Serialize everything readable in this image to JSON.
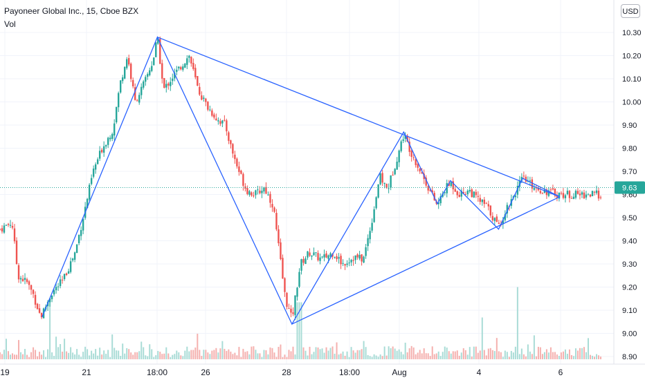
{
  "legend": {
    "symbol": "Payoneer Global Inc., 15, Cboe BZX",
    "volume_label": "Vol"
  },
  "currency_button": "USD",
  "colors": {
    "up": "#26a69a",
    "down": "#ef5350",
    "pattern_line": "#2962ff",
    "price_line": "#26a69a"
  },
  "chart_data": {
    "type": "candlestick",
    "y_ticks": [
      "10.30",
      "10.20",
      "10.10",
      "10.00",
      "9.90",
      "9.80",
      "9.70",
      "9.60",
      "9.50",
      "9.40",
      "9.30",
      "9.20",
      "9.10",
      "9.00",
      "8.90"
    ],
    "ylim": [
      8.9,
      10.35
    ],
    "x_ticks": [
      "19",
      "21",
      "18:00",
      "26",
      "28",
      "18:00",
      "Aug",
      "4",
      "6"
    ],
    "last_price": "9.63",
    "grid": true,
    "pattern_points": [
      {
        "t": 0.07,
        "price": 9.07
      },
      {
        "t": 0.262,
        "price": 10.28
      },
      {
        "t": 0.486,
        "price": 9.04
      },
      {
        "t": 0.672,
        "price": 9.87
      },
      {
        "t": 0.728,
        "price": 9.56
      },
      {
        "t": 0.75,
        "price": 9.66
      },
      {
        "t": 0.83,
        "price": 9.45
      },
      {
        "t": 0.87,
        "price": 9.67
      },
      {
        "t": 0.932,
        "price": 9.59
      }
    ],
    "triangle_lines": [
      [
        {
          "t": 0.262,
          "price": 10.28
        },
        {
          "t": 0.932,
          "price": 9.59
        }
      ],
      [
        {
          "t": 0.486,
          "price": 9.04
        },
        {
          "t": 0.932,
          "price": 9.59
        }
      ]
    ],
    "price_path": [
      [
        0.0,
        9.45
      ],
      [
        0.02,
        9.48
      ],
      [
        0.03,
        9.25
      ],
      [
        0.045,
        9.22
      ],
      [
        0.055,
        9.17
      ],
      [
        0.068,
        9.07
      ],
      [
        0.085,
        9.17
      ],
      [
        0.105,
        9.23
      ],
      [
        0.125,
        9.35
      ],
      [
        0.14,
        9.52
      ],
      [
        0.155,
        9.7
      ],
      [
        0.17,
        9.8
      ],
      [
        0.188,
        9.88
      ],
      [
        0.2,
        10.08
      ],
      [
        0.212,
        10.2
      ],
      [
        0.225,
        10.0
      ],
      [
        0.24,
        10.08
      ],
      [
        0.255,
        10.18
      ],
      [
        0.262,
        10.28
      ],
      [
        0.272,
        10.05
      ],
      [
        0.285,
        10.1
      ],
      [
        0.3,
        10.15
      ],
      [
        0.315,
        10.2
      ],
      [
        0.33,
        10.05
      ],
      [
        0.345,
        9.98
      ],
      [
        0.36,
        9.93
      ],
      [
        0.375,
        9.9
      ],
      [
        0.385,
        9.8
      ],
      [
        0.395,
        9.72
      ],
      [
        0.41,
        9.62
      ],
      [
        0.425,
        9.6
      ],
      [
        0.44,
        9.63
      ],
      [
        0.455,
        9.55
      ],
      [
        0.465,
        9.35
      ],
      [
        0.475,
        9.15
      ],
      [
        0.486,
        9.06
      ],
      [
        0.5,
        9.3
      ],
      [
        0.515,
        9.35
      ],
      [
        0.535,
        9.32
      ],
      [
        0.555,
        9.35
      ],
      [
        0.57,
        9.3
      ],
      [
        0.59,
        9.33
      ],
      [
        0.605,
        9.32
      ],
      [
        0.62,
        9.5
      ],
      [
        0.632,
        9.68
      ],
      [
        0.645,
        9.62
      ],
      [
        0.66,
        9.75
      ],
      [
        0.672,
        9.86
      ],
      [
        0.685,
        9.78
      ],
      [
        0.7,
        9.7
      ],
      [
        0.715,
        9.62
      ],
      [
        0.728,
        9.55
      ],
      [
        0.74,
        9.62
      ],
      [
        0.75,
        9.65
      ],
      [
        0.765,
        9.6
      ],
      [
        0.78,
        9.62
      ],
      [
        0.795,
        9.58
      ],
      [
        0.81,
        9.55
      ],
      [
        0.83,
        9.46
      ],
      [
        0.845,
        9.55
      ],
      [
        0.86,
        9.62
      ],
      [
        0.87,
        9.67
      ],
      [
        0.885,
        9.64
      ],
      [
        0.9,
        9.62
      ],
      [
        0.915,
        9.61
      ],
      [
        0.932,
        9.6
      ]
    ],
    "volume_spikes": [
      {
        "t": 0.082,
        "rel": 0.8
      },
      {
        "t": 0.494,
        "rel": 0.75
      },
      {
        "t": 0.5,
        "rel": 0.75
      },
      {
        "t": 0.803,
        "rel": 0.55
      },
      {
        "t": 0.862,
        "rel": 0.95
      }
    ]
  }
}
